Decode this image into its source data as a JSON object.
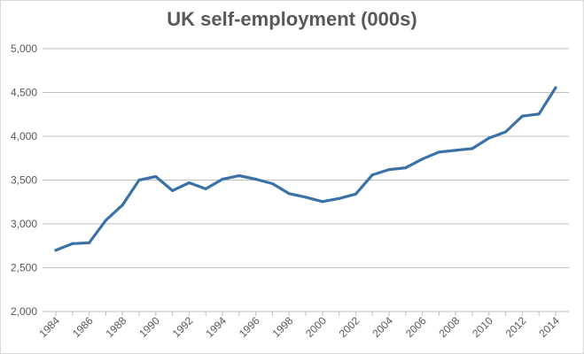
{
  "chart_data": {
    "type": "line",
    "title": "UK self-employment (000s)",
    "xlabel": "",
    "ylabel": "",
    "x": [
      1984,
      1985,
      1986,
      1987,
      1988,
      1989,
      1990,
      1991,
      1992,
      1993,
      1994,
      1995,
      1996,
      1997,
      1998,
      1999,
      2000,
      2001,
      2002,
      2003,
      2004,
      2005,
      2006,
      2007,
      2008,
      2009,
      2010,
      2011,
      2012,
      2013,
      2014
    ],
    "series": [
      {
        "values": [
          2700,
          2775,
          2785,
          3040,
          3215,
          3500,
          3540,
          3380,
          3470,
          3400,
          3510,
          3550,
          3510,
          3460,
          3345,
          3305,
          3255,
          3290,
          3340,
          3560,
          3620,
          3640,
          3740,
          3820,
          3840,
          3860,
          3980,
          4050,
          4230,
          4255,
          4555
        ],
        "color": "#3a72a8"
      }
    ],
    "ylim": [
      2000,
      5000
    ],
    "y_ticks": [
      2000,
      2500,
      3000,
      3500,
      4000,
      4500,
      5000
    ],
    "y_tick_labels": [
      "2,000",
      "2,500",
      "3,000",
      "3,500",
      "4,000",
      "4,500",
      "5,000"
    ],
    "x_tick_labels": [
      "1984",
      "1986",
      "1988",
      "1990",
      "1992",
      "1994",
      "1996",
      "1998",
      "2000",
      "2002",
      "2004",
      "2006",
      "2008",
      "2010",
      "2012",
      "2014"
    ],
    "grid": "horizontal",
    "legend": "none"
  }
}
